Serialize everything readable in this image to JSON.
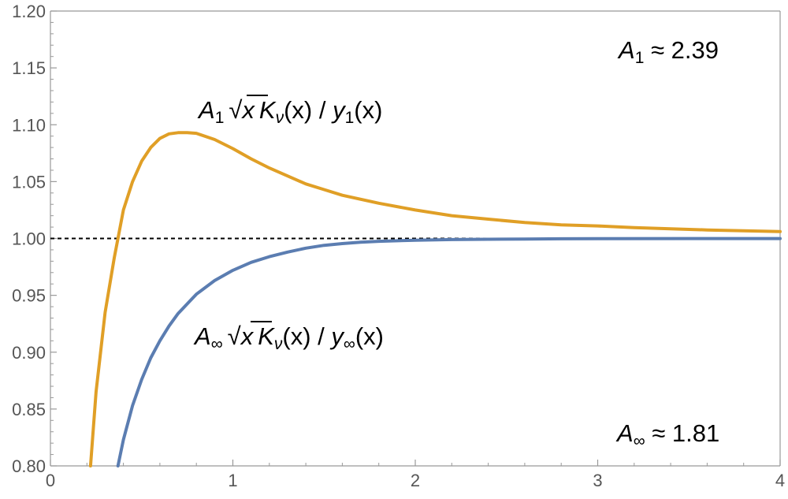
{
  "chart_data": {
    "type": "line",
    "title": "",
    "xlabel": "",
    "ylabel": "",
    "xlim": [
      0,
      4
    ],
    "ylim": [
      0.8,
      1.2
    ],
    "x_ticks": [
      "0",
      "1",
      "2",
      "3",
      "4"
    ],
    "y_ticks": [
      "0.80",
      "0.85",
      "0.90",
      "0.95",
      "1.00",
      "1.05",
      "1.10",
      "1.15",
      "1.20"
    ],
    "grid": false,
    "legend": "none",
    "reference_line": {
      "y": 1.0,
      "style": "dashed",
      "color": "#000000"
    },
    "series": [
      {
        "color": "#E09F26",
        "label_parts": [
          "A",
          "1",
          "√",
          "x",
          "K",
          "ν",
          "(x) / ",
          "y",
          "1",
          "(x)"
        ],
        "x": [
          0.22,
          0.25,
          0.3,
          0.35,
          0.37,
          0.4,
          0.45,
          0.5,
          0.55,
          0.6,
          0.65,
          0.7,
          0.75,
          0.8,
          0.9,
          1.0,
          1.1,
          1.2,
          1.3,
          1.4,
          1.5,
          1.6,
          1.8,
          2.0,
          2.2,
          2.4,
          2.6,
          2.8,
          3.0,
          3.2,
          3.4,
          3.6,
          3.8,
          4.0
        ],
        "y": [
          0.8,
          0.865,
          0.935,
          0.983,
          1.0,
          1.025,
          1.05,
          1.068,
          1.08,
          1.088,
          1.092,
          1.093,
          1.093,
          1.0925,
          1.087,
          1.079,
          1.07,
          1.062,
          1.055,
          1.048,
          1.043,
          1.038,
          1.031,
          1.025,
          1.02,
          1.017,
          1.014,
          1.012,
          1.011,
          1.0095,
          1.0085,
          1.0075,
          1.0067,
          1.006
        ]
      },
      {
        "color": "#5B7DB1",
        "label_parts": [
          "A",
          "∞",
          "√",
          "x",
          "K",
          "ν",
          "(x) / ",
          "y",
          "∞",
          "(x)"
        ],
        "x": [
          0.37,
          0.4,
          0.45,
          0.5,
          0.55,
          0.6,
          0.65,
          0.7,
          0.8,
          0.9,
          1.0,
          1.1,
          1.2,
          1.3,
          1.4,
          1.5,
          1.6,
          1.7,
          1.8,
          2.0,
          2.2,
          2.4,
          2.6,
          2.8,
          3.0,
          3.5,
          4.0
        ],
        "y": [
          0.8,
          0.823,
          0.853,
          0.876,
          0.895,
          0.91,
          0.923,
          0.934,
          0.951,
          0.963,
          0.972,
          0.979,
          0.984,
          0.988,
          0.9915,
          0.994,
          0.9955,
          0.9967,
          0.9975,
          0.9985,
          0.999,
          0.9993,
          0.9995,
          0.9997,
          0.9998,
          0.9999,
          0.9999
        ]
      }
    ],
    "annotations": {
      "a1_value": {
        "symbol": "A",
        "sub": "1",
        "text": " ≈ 2.39"
      },
      "ainf_value": {
        "symbol": "A",
        "sub": "∞",
        "text": " ≈ 1.81"
      }
    }
  }
}
